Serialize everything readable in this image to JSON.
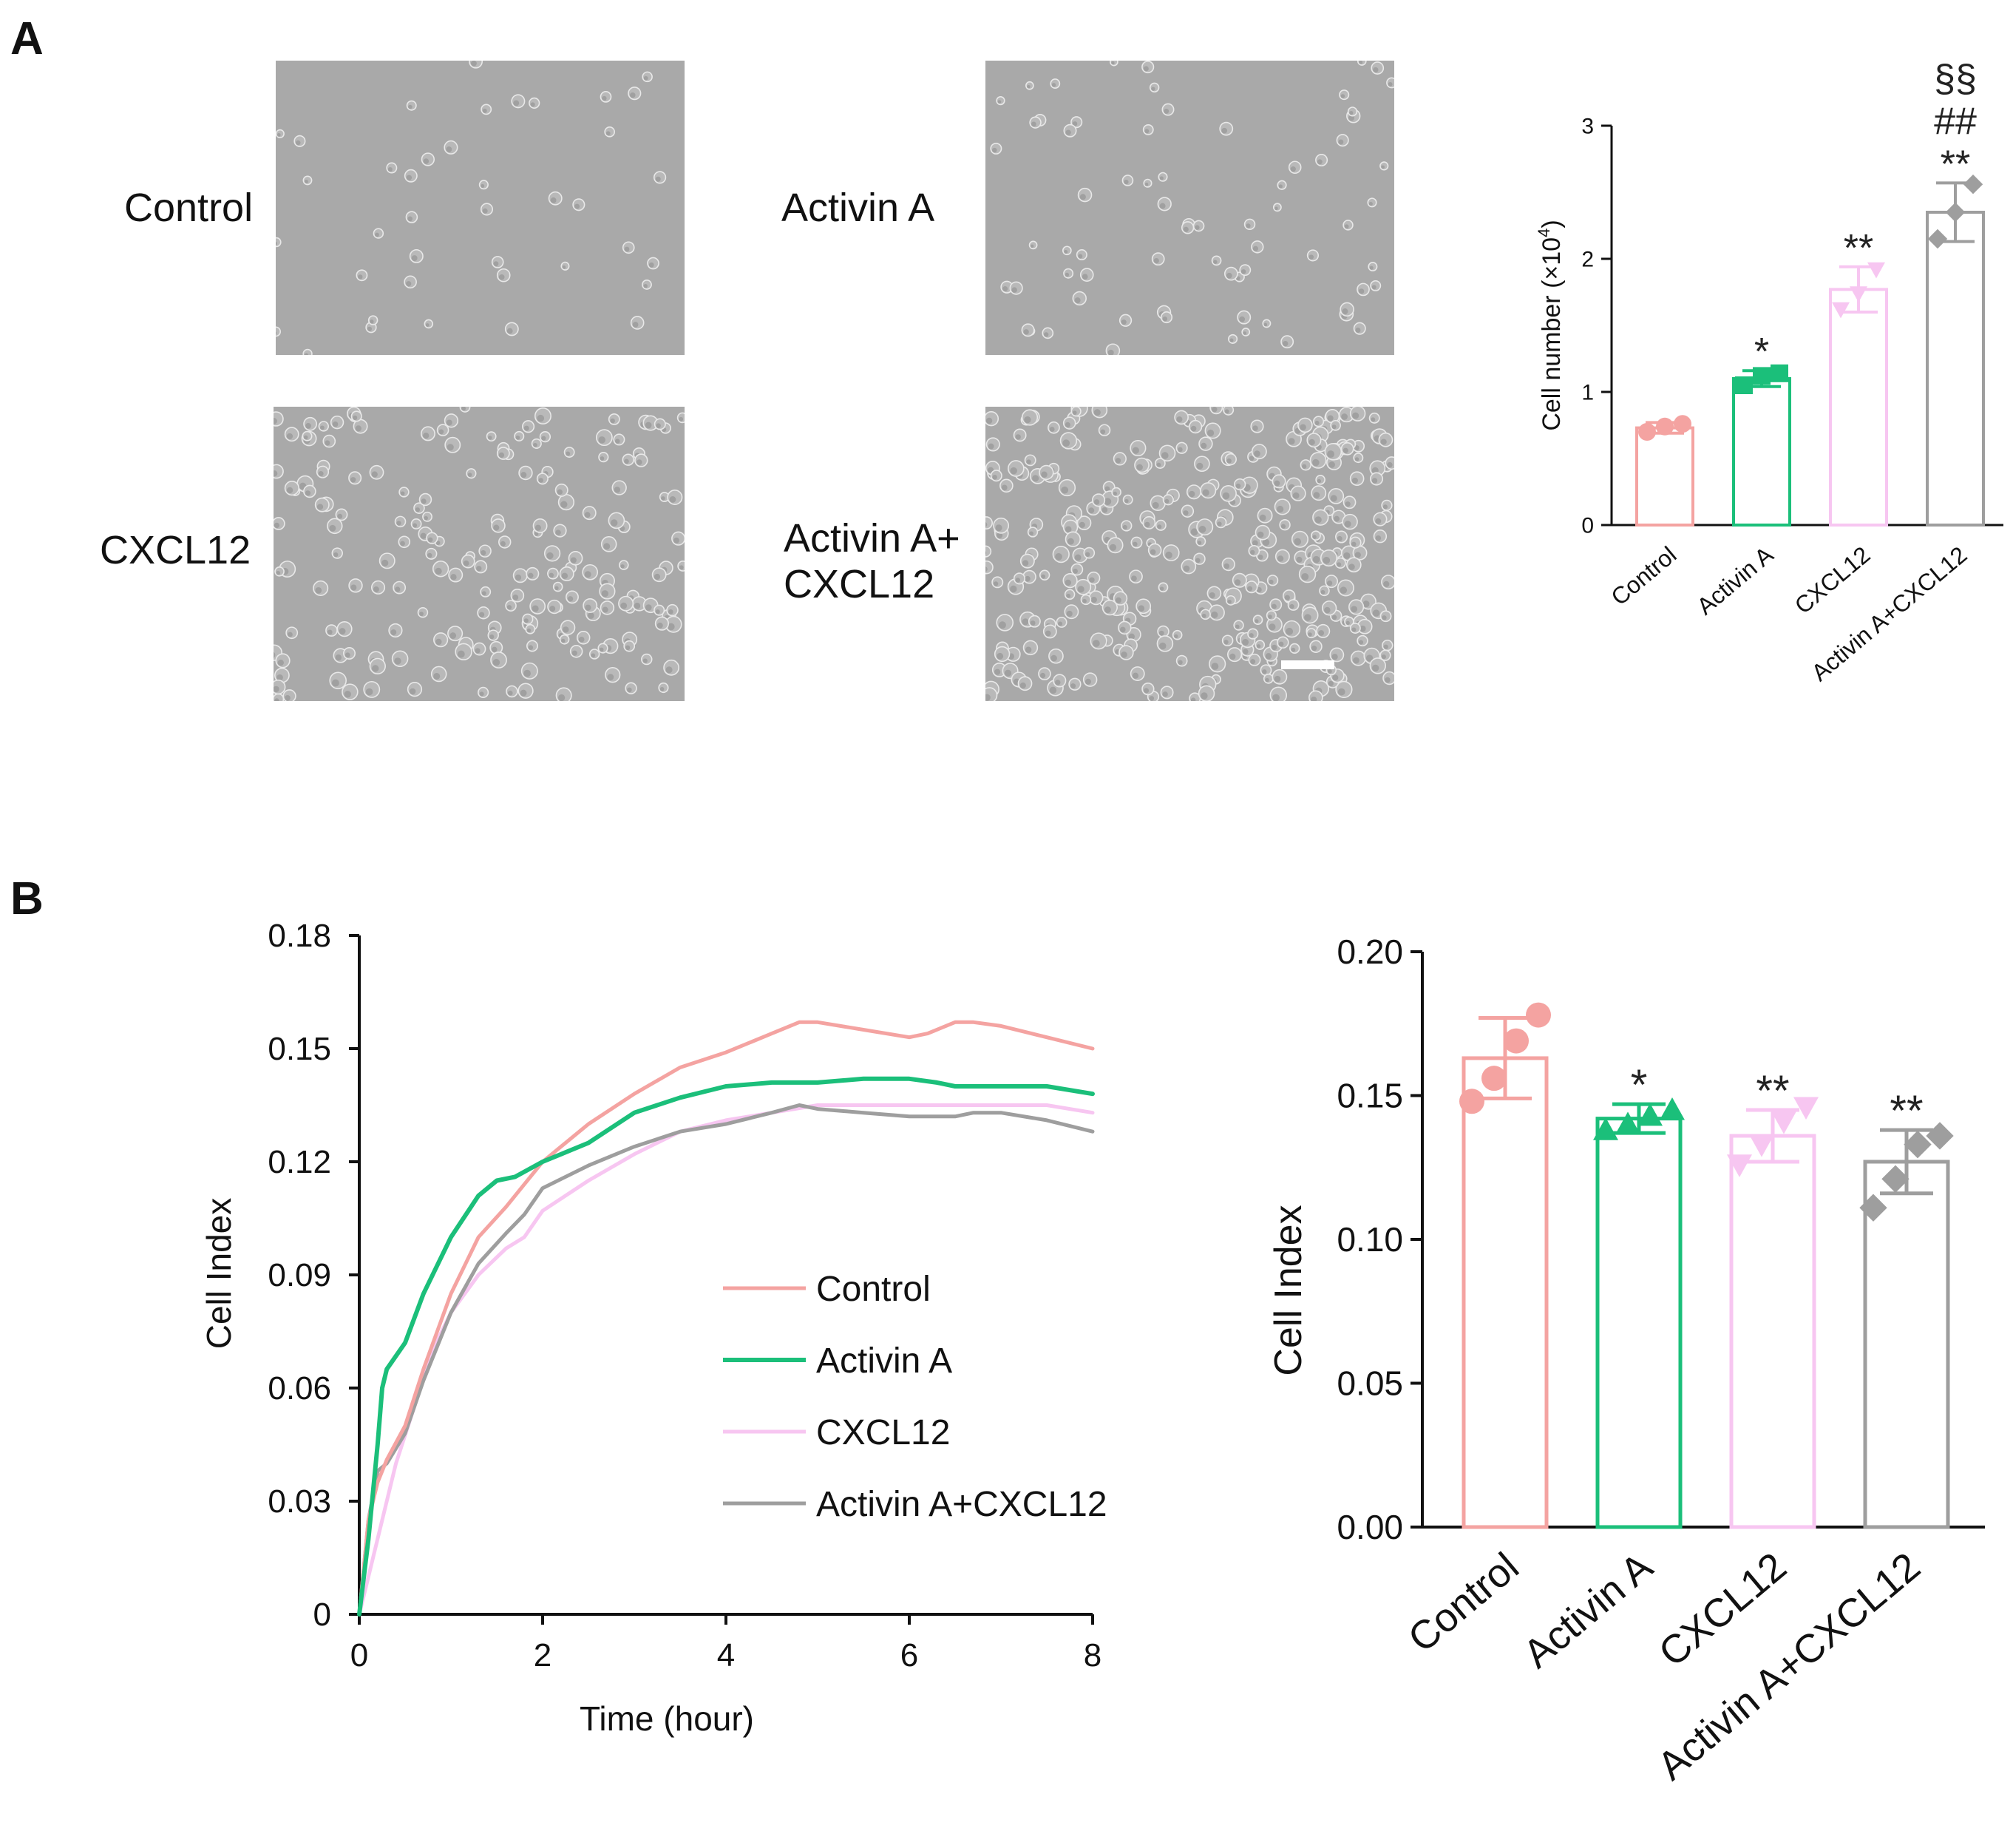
{
  "panels": {
    "a": "A",
    "b": "B"
  },
  "micrographs": [
    {
      "label": "Control",
      "density": 40,
      "texture": "sparse"
    },
    {
      "label": "Activin A",
      "density": 70,
      "texture": "sparse"
    },
    {
      "label": "CXCL12",
      "density": 190,
      "texture": "dense"
    },
    {
      "label": "Activin A+\nCXCL12",
      "density": 330,
      "texture": "dense"
    }
  ],
  "colors": {
    "control": "#f4a3a1",
    "activin": "#1bbf7a",
    "cxcl12": "#f7c6f1",
    "combo": "#9e9e9e",
    "micrograph_bg": "#a9a9a9",
    "cell_edge": "#e8e8e8"
  },
  "chart_data": [
    {
      "id": "cell-number-bar",
      "type": "bar",
      "categories": [
        "Control",
        "Activin A",
        "CXCL12",
        "Activin A+CXCL12"
      ],
      "values": [
        0.73,
        1.1,
        1.77,
        2.35
      ],
      "errors": [
        0.04,
        0.06,
        0.17,
        0.22
      ],
      "points": [
        [
          0.7,
          0.74,
          0.76
        ],
        [
          1.05,
          1.12,
          1.14
        ],
        [
          1.62,
          1.74,
          1.92
        ],
        [
          2.15,
          2.35,
          2.56
        ]
      ],
      "markers": [
        "circle",
        "square",
        "triangle-down",
        "diamond"
      ],
      "significance": [
        [],
        [
          "*"
        ],
        [
          "**"
        ],
        [
          "**",
          "##",
          "§§"
        ]
      ],
      "ylabel": "Cell number (×10⁴)",
      "ylabel_main": "Cell number (×10",
      "ylabel_sup": "4",
      "ylabel_end": ")",
      "yticks": [
        0,
        1,
        2,
        3
      ],
      "ylim": [
        0,
        3
      ]
    },
    {
      "id": "cell-index-line",
      "type": "line",
      "xlabel": "Time (hour)",
      "ylabel": "Cell Index",
      "xticks": [
        0,
        2,
        4,
        6,
        8
      ],
      "xlim": [
        0,
        8
      ],
      "yticks": [
        0,
        0.03,
        0.06,
        0.09,
        0.12,
        0.15,
        0.18
      ],
      "ytick_labels": [
        "0",
        "0.03",
        "0.06",
        "0.09",
        "0.12",
        "0.15",
        "0.18"
      ],
      "ylim": [
        0,
        0.18
      ],
      "legend": [
        "Control",
        "Activin A",
        "CXCL12",
        "Activin A+CXCL12"
      ],
      "series": [
        {
          "name": "Control",
          "x": [
            0,
            0.1,
            0.2,
            0.3,
            0.5,
            0.7,
            1.0,
            1.3,
            1.6,
            1.8,
            2.0,
            2.5,
            3.0,
            3.5,
            4.0,
            4.5,
            4.8,
            5.0,
            5.5,
            6.0,
            6.2,
            6.5,
            6.7,
            7.0,
            7.5,
            8.0
          ],
          "y": [
            0,
            0.025,
            0.035,
            0.041,
            0.05,
            0.065,
            0.085,
            0.1,
            0.108,
            0.114,
            0.12,
            0.13,
            0.138,
            0.145,
            0.149,
            0.154,
            0.157,
            0.157,
            0.155,
            0.153,
            0.154,
            0.157,
            0.157,
            0.156,
            0.153,
            0.15
          ]
        },
        {
          "name": "Activin A",
          "x": [
            0,
            0.1,
            0.2,
            0.25,
            0.3,
            0.5,
            0.7,
            1.0,
            1.3,
            1.5,
            1.7,
            2.0,
            2.5,
            3.0,
            3.5,
            4.0,
            4.5,
            5.0,
            5.5,
            6.0,
            6.3,
            6.5,
            7.0,
            7.5,
            8.0
          ],
          "y": [
            0,
            0.02,
            0.045,
            0.06,
            0.065,
            0.072,
            0.085,
            0.1,
            0.111,
            0.115,
            0.116,
            0.12,
            0.125,
            0.133,
            0.137,
            0.14,
            0.141,
            0.141,
            0.142,
            0.142,
            0.141,
            0.14,
            0.14,
            0.14,
            0.138
          ]
        },
        {
          "name": "CXCL12",
          "x": [
            0,
            0.2,
            0.4,
            0.6,
            0.8,
            1.0,
            1.3,
            1.6,
            1.8,
            2.0,
            2.5,
            3.0,
            3.5,
            4.0,
            4.5,
            5.0,
            5.5,
            6.0,
            6.5,
            7.0,
            7.5,
            8.0
          ],
          "y": [
            0,
            0.02,
            0.04,
            0.055,
            0.07,
            0.08,
            0.09,
            0.097,
            0.1,
            0.107,
            0.115,
            0.122,
            0.128,
            0.131,
            0.133,
            0.135,
            0.135,
            0.135,
            0.135,
            0.135,
            0.135,
            0.133
          ]
        },
        {
          "name": "Activin A+CXCL12",
          "x": [
            0,
            0.1,
            0.2,
            0.3,
            0.5,
            0.7,
            1.0,
            1.3,
            1.6,
            1.8,
            2.0,
            2.5,
            3.0,
            3.5,
            4.0,
            4.5,
            4.8,
            5.0,
            5.5,
            6.0,
            6.5,
            6.7,
            7.0,
            7.5,
            8.0
          ],
          "y": [
            0,
            0.025,
            0.038,
            0.04,
            0.048,
            0.062,
            0.08,
            0.093,
            0.101,
            0.106,
            0.113,
            0.119,
            0.124,
            0.128,
            0.13,
            0.133,
            0.135,
            0.134,
            0.133,
            0.132,
            0.132,
            0.133,
            0.133,
            0.131,
            0.128
          ]
        }
      ]
    },
    {
      "id": "cell-index-bar",
      "type": "bar",
      "categories": [
        "Control",
        "Activin A",
        "CXCL12",
        "Activin A+CXCL12"
      ],
      "values": [
        0.163,
        0.142,
        0.136,
        0.127
      ],
      "errors": [
        0.014,
        0.005,
        0.009,
        0.011
      ],
      "points": [
        [
          0.148,
          0.156,
          0.169,
          0.178
        ],
        [
          0.138,
          0.14,
          0.143,
          0.145
        ],
        [
          0.126,
          0.133,
          0.141,
          0.146
        ],
        [
          0.111,
          0.121,
          0.133,
          0.136
        ]
      ],
      "markers": [
        "circle",
        "triangle-up",
        "triangle-down",
        "diamond"
      ],
      "significance": [
        [],
        [
          "*"
        ],
        [
          "**"
        ],
        [
          "**"
        ]
      ],
      "ylabel": "Cell Index",
      "yticks": [
        0,
        0.05,
        0.1,
        0.15,
        0.2
      ],
      "ytick_labels": [
        "0.00",
        "0.05",
        "0.10",
        "0.15",
        "0.20"
      ],
      "ylim": [
        0,
        0.2
      ]
    }
  ]
}
